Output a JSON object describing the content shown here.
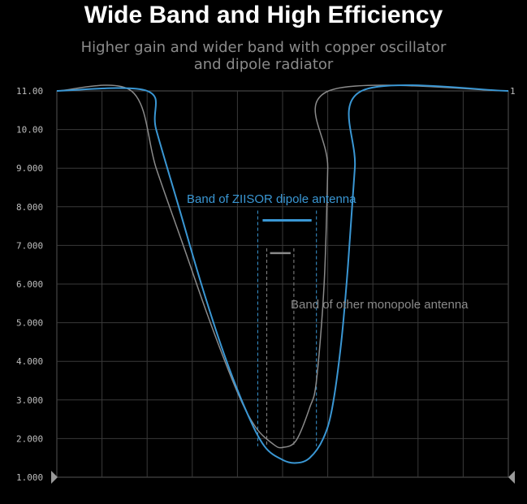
{
  "title": "Wide Band and High Efficiency",
  "subtitle_line1": "Higher gain and wider band with copper oscillator",
  "subtitle_line2": "and dipole radiator",
  "right_marker": "1",
  "colors": {
    "zlisor": "#3a97d4",
    "monopole": "#8a8a8a",
    "grid": "#3a3a3a",
    "background": "#000000"
  },
  "chart_data": {
    "type": "line",
    "title": "Wide Band and High Efficiency",
    "ylim": [
      1.0,
      11.0
    ],
    "xlim": [
      0,
      100
    ],
    "y_ticks": [
      "11.00",
      "10.00",
      "9.000",
      "8.000",
      "7.000",
      "6.000",
      "5.000",
      "4.000",
      "3.000",
      "2.000",
      "1.000"
    ],
    "grid": true,
    "series": [
      {
        "name": "Band of ZIISOR dipole antenna",
        "color": "#3a97d4",
        "points": [
          [
            0,
            11.0
          ],
          [
            20,
            11.0
          ],
          [
            22,
            10.0
          ],
          [
            27,
            8.0
          ],
          [
            32,
            6.0
          ],
          [
            37,
            4.2
          ],
          [
            42,
            2.7
          ],
          [
            46,
            1.8
          ],
          [
            50,
            1.45
          ],
          [
            53,
            1.37
          ],
          [
            56,
            1.5
          ],
          [
            59,
            2.0
          ],
          [
            61,
            2.8
          ],
          [
            63,
            4.5
          ],
          [
            64.5,
            6.5
          ],
          [
            66,
            9.0
          ],
          [
            67.5,
            11.0
          ],
          [
            100,
            11.0
          ]
        ],
        "band": [
          44.5,
          57.5
        ],
        "band_level": 7.65
      },
      {
        "name": "Band of other monopole antenna",
        "color": "#8a8a8a",
        "points": [
          [
            0,
            11.0
          ],
          [
            16.5,
            11.0
          ],
          [
            22,
            9.0
          ],
          [
            28,
            7.0
          ],
          [
            34,
            5.0
          ],
          [
            40,
            3.2
          ],
          [
            44,
            2.3
          ],
          [
            48,
            1.85
          ],
          [
            50,
            1.77
          ],
          [
            53,
            1.95
          ],
          [
            56,
            2.8
          ],
          [
            57.5,
            3.5
          ],
          [
            59.2,
            6.0
          ],
          [
            60,
            9.0
          ],
          [
            60.2,
            11.0
          ],
          [
            100,
            11.0
          ]
        ],
        "band": [
          46.5,
          52.5
        ],
        "band_level": 6.8
      }
    ]
  }
}
